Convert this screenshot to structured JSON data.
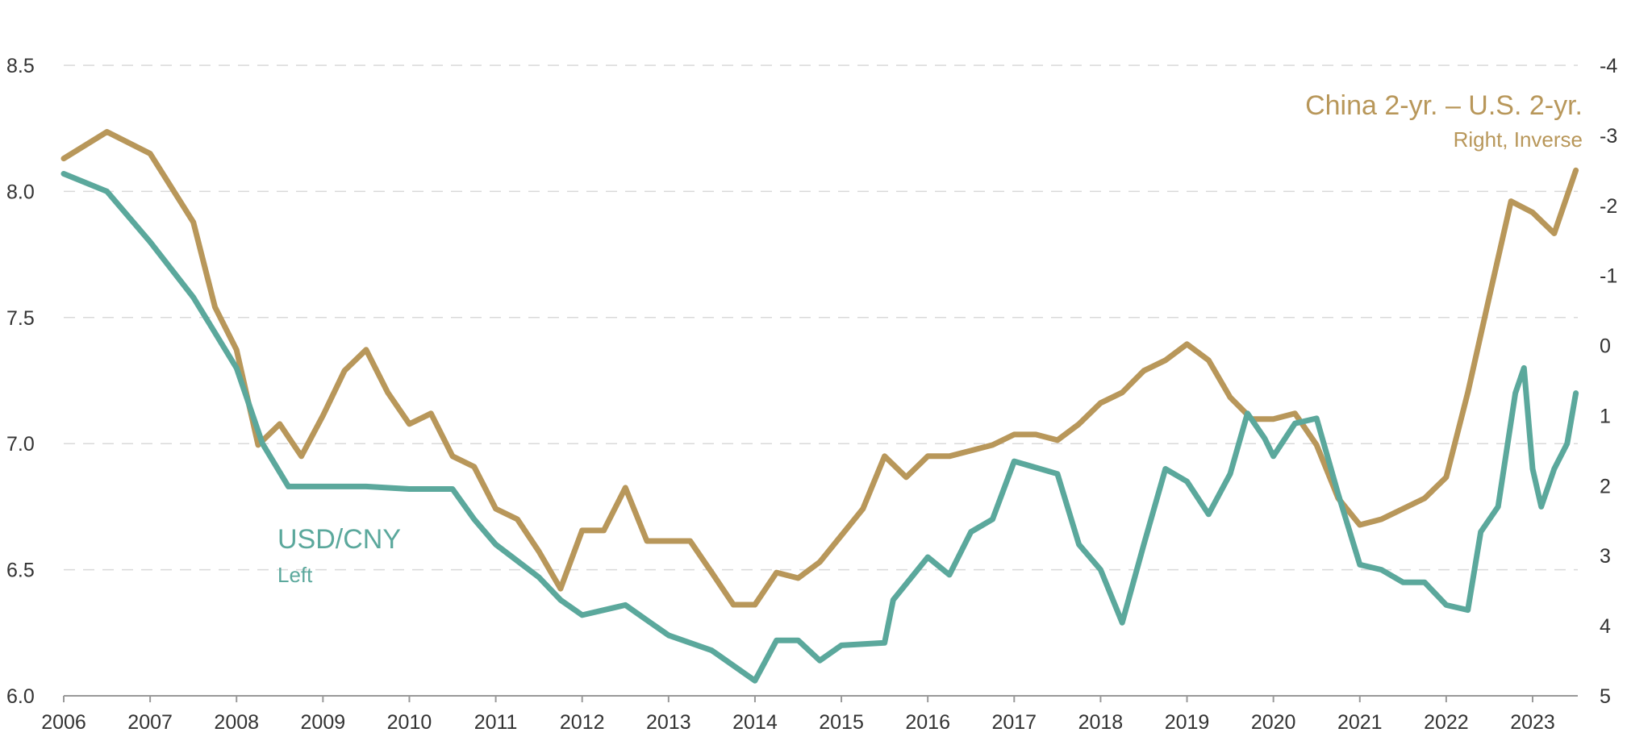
{
  "chart_data": {
    "type": "line",
    "title": "",
    "colors": {
      "usdcny": "#5BA89C",
      "spread": "#B8975A"
    },
    "x_ticks": [
      "2006",
      "2007",
      "2008",
      "2009",
      "2010",
      "2011",
      "2012",
      "2013",
      "2014",
      "2015",
      "2016",
      "2017",
      "2018",
      "2019",
      "2020",
      "2021",
      "2022",
      "2023"
    ],
    "left_axis": {
      "label": "USD/CNY",
      "ticks": [
        "8.5",
        "8.0",
        "7.5",
        "7.0",
        "6.5",
        "6.0"
      ],
      "ylim": [
        6.0,
        8.5
      ]
    },
    "right_axis": {
      "label": "China 2-yr. – U.S. 2-yr.",
      "inverted": true,
      "ticks": [
        "-4",
        "-3",
        "-2",
        "-1",
        "0",
        "1",
        "2",
        "3",
        "4",
        "5"
      ],
      "ylim": [
        -4,
        5
      ]
    },
    "legend": {
      "usdcny": {
        "title": "USD/CNY",
        "sub": "Left"
      },
      "spread": {
        "title": "China 2-yr. – U.S. 2-yr.",
        "sub": "Right, Inverse"
      }
    },
    "series": [
      {
        "name": "USD/CNY",
        "axis": "left",
        "x": [
          2006,
          2006.5,
          2007,
          2007.5,
          2008,
          2008.3,
          2008.6,
          2009,
          2009.5,
          2010,
          2010.5,
          2010.75,
          2011,
          2011.5,
          2011.75,
          2012,
          2012.5,
          2012.75,
          2013,
          2013.5,
          2013.75,
          2014,
          2014.25,
          2014.5,
          2014.75,
          2015,
          2015.5,
          2015.6,
          2016,
          2016.25,
          2016.5,
          2016.75,
          2017,
          2017.5,
          2017.75,
          2018,
          2018.25,
          2018.5,
          2018.75,
          2019,
          2019.25,
          2019.5,
          2019.7,
          2019.9,
          2020,
          2020.25,
          2020.5,
          2020.75,
          2021,
          2021.25,
          2021.5,
          2021.75,
          2022,
          2022.25,
          2022.4,
          2022.6,
          2022.8,
          2022.9,
          2023,
          2023.1,
          2023.25,
          2023.4,
          2023.5
        ],
        "values": [
          8.07,
          8.0,
          7.8,
          7.58,
          7.3,
          7.0,
          6.83,
          6.83,
          6.83,
          6.82,
          6.82,
          6.7,
          6.6,
          6.47,
          6.38,
          6.32,
          6.36,
          6.3,
          6.24,
          6.18,
          6.12,
          6.06,
          6.22,
          6.22,
          6.14,
          6.2,
          6.21,
          6.38,
          6.55,
          6.48,
          6.65,
          6.7,
          6.93,
          6.88,
          6.6,
          6.5,
          6.29,
          6.6,
          6.9,
          6.85,
          6.72,
          6.88,
          7.12,
          7.02,
          6.95,
          7.08,
          7.1,
          6.8,
          6.52,
          6.5,
          6.45,
          6.45,
          6.36,
          6.34,
          6.65,
          6.75,
          7.2,
          7.3,
          6.9,
          6.75,
          6.9,
          7.0,
          7.2
        ]
      },
      {
        "name": "China 2-yr. – U.S. 2-yr.",
        "axis": "right",
        "x": [
          2006,
          2006.5,
          2007,
          2007.5,
          2007.75,
          2008,
          2008.25,
          2008.5,
          2008.75,
          2009,
          2009.25,
          2009.5,
          2009.75,
          2010,
          2010.25,
          2010.5,
          2010.75,
          2011,
          2011.25,
          2011.5,
          2011.75,
          2012,
          2012.25,
          2012.5,
          2012.75,
          2013,
          2013.25,
          2013.5,
          2013.75,
          2014,
          2014.25,
          2014.5,
          2014.75,
          2015,
          2015.25,
          2015.5,
          2015.75,
          2016,
          2016.25,
          2016.5,
          2016.75,
          2017,
          2017.25,
          2017.5,
          2017.75,
          2018,
          2018.25,
          2018.5,
          2018.75,
          2019,
          2019.25,
          2019.5,
          2019.75,
          2020,
          2020.25,
          2020.5,
          2020.75,
          2021,
          2021.25,
          2021.5,
          2021.75,
          2022,
          2022.25,
          2022.5,
          2022.75,
          2023,
          2023.25,
          2023.5
        ],
        "values": [
          -2.67,
          -3.05,
          -2.74,
          -1.76,
          -0.55,
          0.06,
          1.42,
          1.12,
          1.58,
          1.0,
          0.36,
          0.06,
          0.67,
          1.12,
          0.97,
          1.58,
          1.73,
          2.33,
          2.48,
          2.94,
          3.47,
          2.64,
          2.64,
          2.03,
          2.79,
          2.79,
          2.79,
          3.24,
          3.7,
          3.7,
          3.24,
          3.32,
          3.09,
          2.71,
          2.33,
          1.58,
          1.88,
          1.58,
          1.58,
          1.5,
          1.42,
          1.27,
          1.27,
          1.35,
          1.12,
          0.82,
          0.67,
          0.36,
          0.21,
          -0.02,
          0.21,
          0.74,
          1.05,
          1.05,
          0.97,
          1.42,
          2.18,
          2.56,
          2.48,
          2.33,
          2.18,
          1.88,
          0.67,
          -0.7,
          -2.06,
          -1.9,
          -1.6,
          -2.5
        ]
      }
    ]
  }
}
